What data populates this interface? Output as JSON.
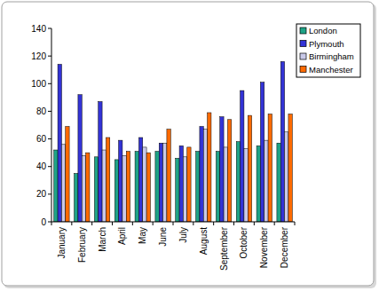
{
  "chart_data": {
    "type": "bar",
    "categories": [
      "January",
      "February",
      "March",
      "April",
      "May",
      "June",
      "July",
      "August",
      "September",
      "October",
      "November",
      "December"
    ],
    "series": [
      {
        "name": "London",
        "color": "#1fa386",
        "values": [
          52,
          35,
          47,
          45,
          51,
          51,
          46,
          51,
          51,
          58,
          55,
          57
        ]
      },
      {
        "name": "Plymouth",
        "color": "#3333d6",
        "values": [
          114,
          92,
          87,
          59,
          61,
          57,
          55,
          69,
          76,
          95,
          101,
          116
        ]
      },
      {
        "name": "Birmingham",
        "color": "#c9c9e8",
        "values": [
          56,
          48,
          52,
          48,
          54,
          57,
          47,
          67,
          54,
          53,
          59,
          65
        ]
      },
      {
        "name": "Manchester",
        "color": "#ff6a00",
        "values": [
          69,
          50,
          61,
          51,
          50,
          67,
          54,
          79,
          74,
          77,
          78,
          78
        ]
      }
    ],
    "ylim": [
      0,
      140
    ],
    "yticks": [
      0,
      20,
      40,
      60,
      80,
      100,
      120,
      140
    ],
    "grid": false,
    "legend": "right"
  }
}
